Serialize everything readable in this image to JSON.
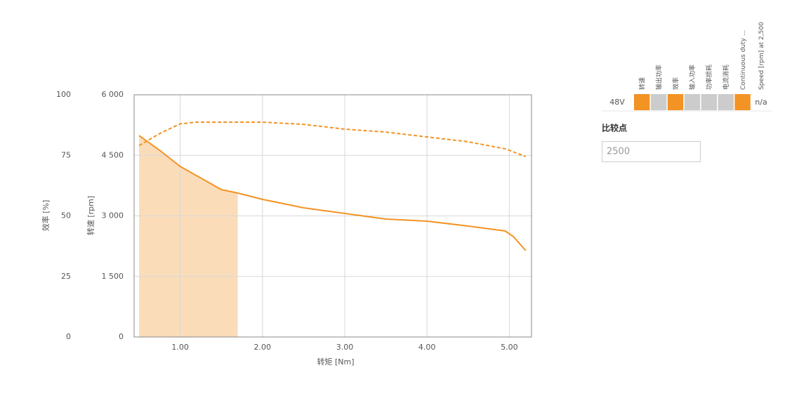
{
  "chart_data": {
    "type": "line",
    "x_label": "转矩 [Nm]",
    "y_label": "转速 [rpm]",
    "y2_label": "效率 [%]",
    "xlim": [
      0.44,
      5.27
    ],
    "xticks": [
      {
        "value": 1,
        "label": "1.00"
      },
      {
        "value": 2,
        "label": "2.00"
      },
      {
        "value": 3,
        "label": "3.00"
      },
      {
        "value": 4,
        "label": "4.00"
      },
      {
        "value": 5,
        "label": "5.00"
      }
    ],
    "ylim": [
      0,
      6000
    ],
    "yticks": [
      0,
      {
        "value": 1500,
        "label": "1 500"
      },
      {
        "value": 3000,
        "label": "3 000"
      },
      {
        "value": 4500,
        "label": "4 500"
      },
      {
        "value": 6000,
        "label": "6 000"
      }
    ],
    "y2lim": [
      0,
      100
    ],
    "y2ticks": [
      0,
      25,
      50,
      75,
      100
    ],
    "grid": true,
    "shaded_range": [
      0.5,
      1.7
    ],
    "shade_color": "#fbdcb9",
    "series": [
      {
        "name": "转速",
        "color": "#f39324",
        "dash": false,
        "x": [
          0.5,
          0.75,
          1.0,
          1.5,
          1.7,
          2.0,
          2.5,
          3.0,
          3.5,
          4.0,
          4.5,
          4.95,
          5.05,
          5.2
        ],
        "values": [
          4991,
          4626,
          4226,
          3652,
          3565,
          3409,
          3200,
          3061,
          2922,
          2870,
          2748,
          2626,
          2487,
          2139
        ]
      },
      {
        "name": "效率",
        "color": "#f39324",
        "dash": true,
        "axis": "y2",
        "x": [
          0.5,
          0.75,
          1.0,
          1.2,
          2.0,
          2.5,
          3.0,
          3.5,
          4.0,
          4.5,
          4.95,
          5.2
        ],
        "values": [
          79,
          84,
          88,
          88.7,
          88.7,
          87.8,
          85.8,
          84.6,
          82.6,
          80.6,
          77.7,
          74.5
        ]
      }
    ]
  },
  "panel": {
    "columns": [
      "转速",
      "输出功率",
      "效率",
      "输入功率",
      "功率损耗",
      "电流消耗",
      "Continuous duty ...",
      "Speed [rpm] at 2,500"
    ],
    "row_label": "48V",
    "cell_colors": [
      "#f39324",
      "#cccccc",
      "#f39324",
      "#cccccc",
      "#cccccc",
      "#cccccc",
      "#f39324"
    ],
    "row_value": "n/a",
    "compare_label": "比较点",
    "compare_value": "2500"
  }
}
